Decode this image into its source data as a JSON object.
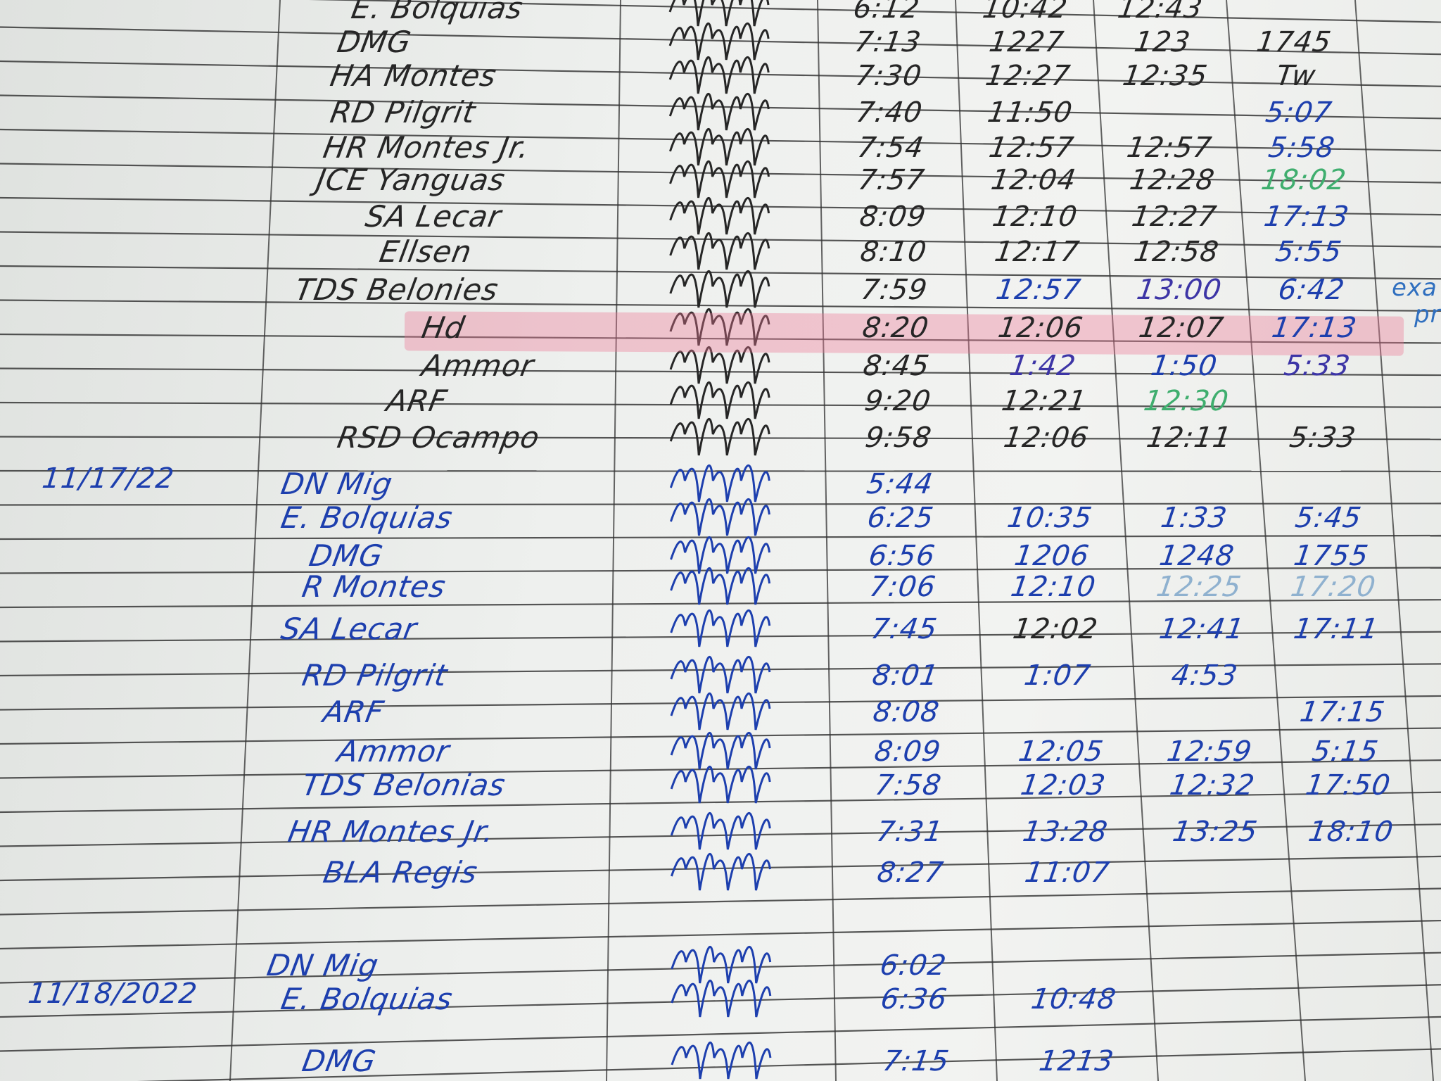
{
  "document": "attendance logbook (handwritten)",
  "ink_colors": {
    "black": "#262626",
    "blue": "#1d3fae",
    "green": "#3fae6e",
    "purple": "#3d35a6",
    "light": "#8fb1cf",
    "highlight": "#ec7896"
  },
  "sections": [
    {
      "date": "",
      "rows": [
        {
          "name": "E. Bolquias",
          "ink": "black",
          "times": [
            "6:12",
            "10:42",
            "12:43",
            ""
          ]
        },
        {
          "name": "DMG",
          "ink": "black",
          "times": [
            "7:13",
            "1227",
            "123",
            "1745"
          ]
        },
        {
          "name": "HA Montes",
          "ink": "black",
          "times": [
            "7:30",
            "12:27",
            "12:35",
            "Tw"
          ]
        },
        {
          "name": "RD Pilgrit",
          "ink": "black",
          "times": [
            "7:40",
            "11:50",
            "",
            "5:07"
          ],
          "ink_times": [
            "black",
            "black",
            "black",
            "blue"
          ]
        },
        {
          "name": "HR Montes Jr.",
          "ink": "black",
          "times": [
            "7:54",
            "12:57",
            "12:57",
            "5:58"
          ],
          "ink_times": [
            "black",
            "black",
            "black",
            "blue"
          ]
        },
        {
          "name": "JCE Yanguas",
          "ink": "black",
          "times": [
            "7:57",
            "12:04",
            "12:28",
            "18:02"
          ],
          "ink_times": [
            "black",
            "black",
            "black",
            "green"
          ]
        },
        {
          "name": "SA Lecar",
          "ink": "black",
          "times": [
            "8:09",
            "12:10",
            "12:27",
            "17:13"
          ],
          "ink_times": [
            "black",
            "black",
            "black",
            "blue"
          ]
        },
        {
          "name": "Ellsen",
          "ink": "black",
          "times": [
            "8:10",
            "12:17",
            "12:58",
            "5:55"
          ],
          "ink_times": [
            "black",
            "black",
            "black",
            "blue"
          ]
        },
        {
          "name": "TDS Belonies",
          "ink": "black",
          "times": [
            "7:59",
            "12:57",
            "13:00",
            "6:42"
          ],
          "ink_times": [
            "black",
            "blue",
            "purple",
            "blue"
          ]
        },
        {
          "name": "Hd",
          "ink": "black",
          "times": [
            "8:20",
            "12:06",
            "12:07",
            "17:13"
          ],
          "ink_times": [
            "black",
            "black",
            "black",
            "blue"
          ],
          "highlighted": true
        },
        {
          "name": "Ammor",
          "ink": "black",
          "times": [
            "8:45",
            "1:42",
            "1:50",
            "5:33"
          ],
          "ink_times": [
            "black",
            "purple",
            "blue",
            "purple"
          ]
        },
        {
          "name": "ARF",
          "ink": "black",
          "times": [
            "9:20",
            "12:21",
            "12:30",
            ""
          ],
          "ink_times": [
            "black",
            "black",
            "green",
            "black"
          ]
        },
        {
          "name": "RSD Ocampo",
          "ink": "black",
          "times": [
            "9:58",
            "12:06",
            "12:11",
            "5:33"
          ]
        }
      ]
    },
    {
      "date": "11/17/22",
      "rows": [
        {
          "name": "DN Mig",
          "ink": "blue",
          "times": [
            "5:44",
            "",
            "",
            ""
          ]
        },
        {
          "name": "E. Bolquias",
          "ink": "blue",
          "times": [
            "6:25",
            "10:35",
            "1:33",
            "5:45"
          ]
        },
        {
          "name": "DMG",
          "ink": "blue",
          "times": [
            "6:56",
            "1206",
            "1248",
            "1755"
          ]
        },
        {
          "name": "R Montes",
          "ink": "blue",
          "times": [
            "7:06",
            "12:10",
            "12:25",
            "17:20"
          ],
          "ink_times": [
            "blue",
            "blue",
            "light",
            "light"
          ]
        },
        {
          "name": "SA Lecar",
          "ink": "blue",
          "times": [
            "7:45",
            "12:02",
            "12:41",
            "17:11"
          ],
          "ink_times": [
            "blue",
            "black",
            "blue",
            "blue"
          ]
        },
        {
          "name": "RD Pilgrit",
          "ink": "blue",
          "times": [
            "8:01",
            "1:07",
            "4:53",
            ""
          ]
        },
        {
          "name": "ARF",
          "ink": "blue",
          "times": [
            "8:08",
            "",
            "",
            "17:15"
          ]
        },
        {
          "name": "Ammor",
          "ink": "blue",
          "times": [
            "8:09",
            "12:05",
            "12:59",
            "5:15"
          ]
        },
        {
          "name": "TDS Belonias",
          "ink": "blue",
          "times": [
            "7:58",
            "12:03",
            "12:32",
            "17:50"
          ]
        },
        {
          "name": "HR Montes Jr.",
          "ink": "blue",
          "times": [
            "7:31",
            "13:28",
            "13:25",
            "18:10"
          ]
        },
        {
          "name": "BLA Regis",
          "ink": "blue",
          "times": [
            "8:27",
            "11:07",
            "",
            ""
          ]
        }
      ]
    },
    {
      "date": "11/18/2022",
      "rows": [
        {
          "name": "DN Mig",
          "ink": "blue",
          "times": [
            "6:02",
            "",
            "",
            ""
          ]
        },
        {
          "name": "E. Bolquias",
          "ink": "blue",
          "times": [
            "6:36",
            "10:48",
            "",
            ""
          ]
        },
        {
          "name": "DMG",
          "ink": "blue",
          "times": [
            "7:15",
            "1213",
            "",
            ""
          ]
        }
      ]
    }
  ],
  "margin_notes": [
    "exa",
    "pr"
  ]
}
